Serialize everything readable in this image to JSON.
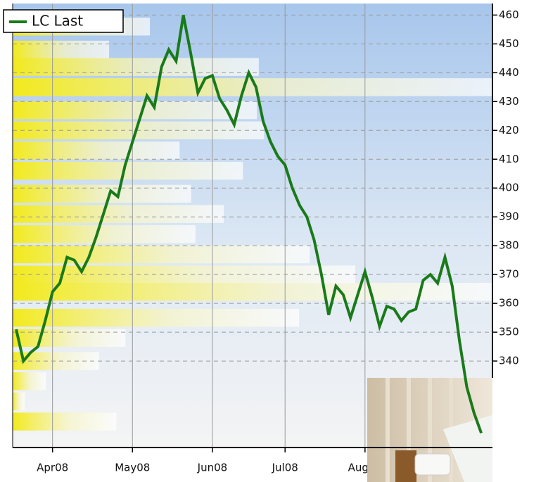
{
  "chart_data": {
    "type": "line",
    "categories": [
      null,
      null,
      null,
      null,
      null,
      "Apr08",
      null,
      null,
      null,
      null,
      null,
      null,
      null,
      null,
      null,
      null,
      "May08",
      null,
      null,
      null,
      null,
      null,
      null,
      null,
      null,
      null,
      null,
      "Jun08",
      null,
      null,
      null,
      null,
      null,
      null,
      null,
      null,
      null,
      "Jul08",
      null,
      null,
      null,
      null,
      null,
      null,
      null,
      null,
      null,
      null,
      "Aug08",
      null,
      null,
      null,
      null,
      null,
      null,
      null,
      null,
      null,
      null,
      null,
      null,
      null,
      null,
      null,
      null
    ],
    "series": [
      {
        "name": "LC Last",
        "color": "#1a7a1a",
        "values": [
          351,
          340,
          343,
          345,
          354,
          364,
          367,
          376,
          375,
          371,
          376,
          383,
          391,
          399,
          397,
          408,
          416,
          424,
          432,
          428,
          442,
          448,
          444,
          460,
          447,
          433,
          438,
          439,
          431,
          427,
          422,
          432,
          440,
          435,
          423,
          416,
          411,
          408,
          400,
          394,
          390,
          382,
          370,
          356,
          366,
          363,
          355,
          363,
          371,
          362,
          352,
          359,
          358,
          354,
          357,
          358,
          368,
          370,
          367,
          376,
          366,
          347,
          331,
          322,
          315
        ]
      }
    ],
    "ylim": [
      310,
      464
    ],
    "yticks": [
      340,
      350,
      360,
      370,
      380,
      390,
      400,
      410,
      420,
      430,
      440,
      450,
      460
    ],
    "grid": true,
    "legend": "top-left",
    "profile": {
      "color": "#f2ea1c",
      "prices": [
        456,
        448,
        442,
        435,
        427,
        420,
        413,
        406,
        398,
        391,
        384,
        377,
        370,
        364,
        355,
        348,
        340,
        333,
        326,
        319
      ],
      "values": [
        28.6,
        20.1,
        51.3,
        100,
        50.9,
        52.4,
        34.8,
        48,
        37.2,
        44,
        38.1,
        61.9,
        71.4,
        100,
        59.7,
        23.5,
        18,
        6.9,
        2.5,
        21.6
      ]
    }
  }
}
